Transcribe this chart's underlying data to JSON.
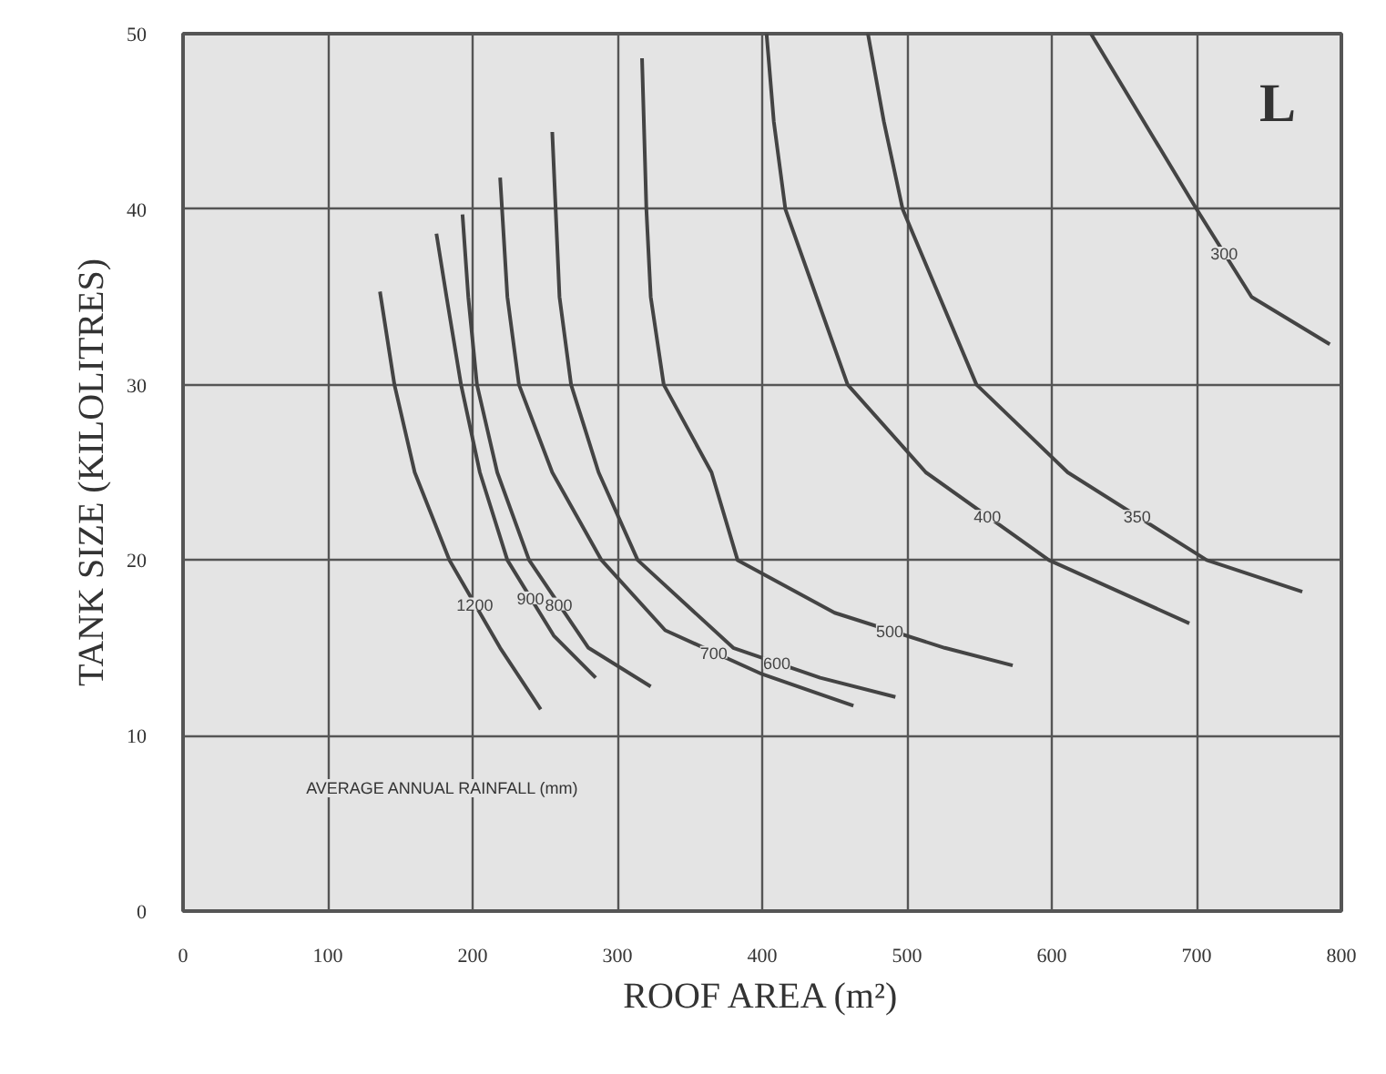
{
  "chart_data": {
    "type": "line",
    "xlabel": "ROOF AREA (m²)",
    "ylabel": "TANK SIZE (KILOLITRES)",
    "xlim": [
      0,
      800
    ],
    "ylim": [
      0,
      50
    ],
    "xticks": [
      0,
      100,
      200,
      300,
      400,
      500,
      600,
      700,
      800
    ],
    "yticks": [
      0,
      10,
      20,
      30,
      40,
      50
    ],
    "grid": true,
    "legend": false,
    "marker": "none",
    "line_style": "solid",
    "annotations": [
      "L",
      "AVERAGE ANNUAL RAINFALL (mm)"
    ],
    "series": [
      {
        "name": "1200",
        "color": "#444444",
        "x": [
          136,
          146,
          160,
          184,
          219,
          247
        ],
        "values": [
          35.3,
          30,
          25,
          20,
          15,
          11.5
        ]
      },
      {
        "name": "900",
        "color": "#444444",
        "x": [
          175,
          182,
          192,
          205,
          224,
          256,
          285
        ],
        "values": [
          38.6,
          35,
          30,
          25,
          20,
          15.7,
          13.3
        ]
      },
      {
        "name": "800",
        "color": "#444444",
        "x": [
          193,
          197,
          203,
          217,
          239,
          280,
          323
        ],
        "values": [
          39.7,
          35,
          30,
          25,
          20,
          15,
          12.8
        ]
      },
      {
        "name": "700",
        "color": "#444444",
        "x": [
          219,
          224,
          232,
          255,
          289,
          333,
          400,
          463
        ],
        "values": [
          41.8,
          35,
          30,
          25,
          20,
          16,
          13.5,
          11.7
        ]
      },
      {
        "name": "600",
        "color": "#444444",
        "x": [
          255,
          260,
          268,
          287,
          314,
          380,
          440,
          492
        ],
        "values": [
          44.4,
          35,
          30,
          25,
          20,
          15,
          13.3,
          12.2
        ]
      },
      {
        "name": "500",
        "color": "#444444",
        "x": [
          317,
          320,
          323,
          332,
          365,
          383,
          450,
          526,
          573
        ],
        "values": [
          48.6,
          40,
          35,
          30,
          25,
          20,
          17,
          15,
          14
        ]
      },
      {
        "name": "400",
        "color": "#444444",
        "x": [
          403,
          408,
          416,
          459,
          513,
          598,
          695
        ],
        "values": [
          50,
          45,
          40,
          30,
          25,
          20,
          16.4
        ]
      },
      {
        "name": "350",
        "color": "#444444",
        "x": [
          473,
          484,
          497,
          548,
          611,
          707,
          773
        ],
        "values": [
          50,
          45,
          40,
          30,
          25,
          20,
          18.2
        ]
      },
      {
        "name": "300",
        "color": "#444444",
        "x": [
          627,
          700,
          738,
          792
        ],
        "values": [
          50,
          40,
          35,
          32.3
        ]
      }
    ]
  }
}
